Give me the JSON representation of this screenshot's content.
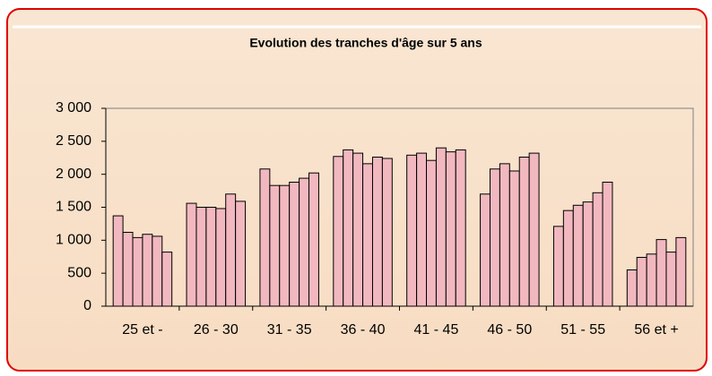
{
  "chart_data": {
    "type": "bar",
    "title": "Evolution des tranches d'âge sur 5 ans",
    "categories": [
      "25 et -",
      "26 - 30",
      "31 - 35",
      "36 - 40",
      "41 - 45",
      "46 - 50",
      "51 - 55",
      "56 et +"
    ],
    "series": [
      {
        "color": "#f2b8bf",
        "values": [
          1370,
          1560,
          2080,
          2270,
          2290,
          1700,
          1210,
          550
        ]
      },
      {
        "color": "#f2b8bf",
        "values": [
          1120,
          1500,
          1830,
          2370,
          2320,
          2080,
          1450,
          740
        ]
      },
      {
        "color": "#f2b8bf",
        "values": [
          1040,
          1500,
          1830,
          2320,
          2210,
          2160,
          1530,
          790
        ]
      },
      {
        "color": "#f2b8bf",
        "values": [
          1090,
          1480,
          1880,
          2160,
          2400,
          2050,
          1580,
          1010
        ]
      },
      {
        "color": "#f2b8bf",
        "values": [
          1060,
          1700,
          1940,
          2260,
          2340,
          2260,
          1720,
          820
        ]
      },
      {
        "color": "#f2b8bf",
        "values": [
          820,
          1590,
          2020,
          2240,
          2370,
          2320,
          1880,
          1040
        ]
      }
    ],
    "ylim": [
      0,
      3000
    ],
    "yticks": [
      0,
      {
        "value": 500,
        "label": "500"
      },
      {
        "value": 1000,
        "label": "1 000"
      },
      {
        "value": 1500,
        "label": "1 500"
      },
      {
        "value": 2000,
        "label": "2 000"
      },
      {
        "value": 2500,
        "label": "2 500"
      },
      {
        "value": 3000,
        "label": "3 000"
      }
    ]
  }
}
